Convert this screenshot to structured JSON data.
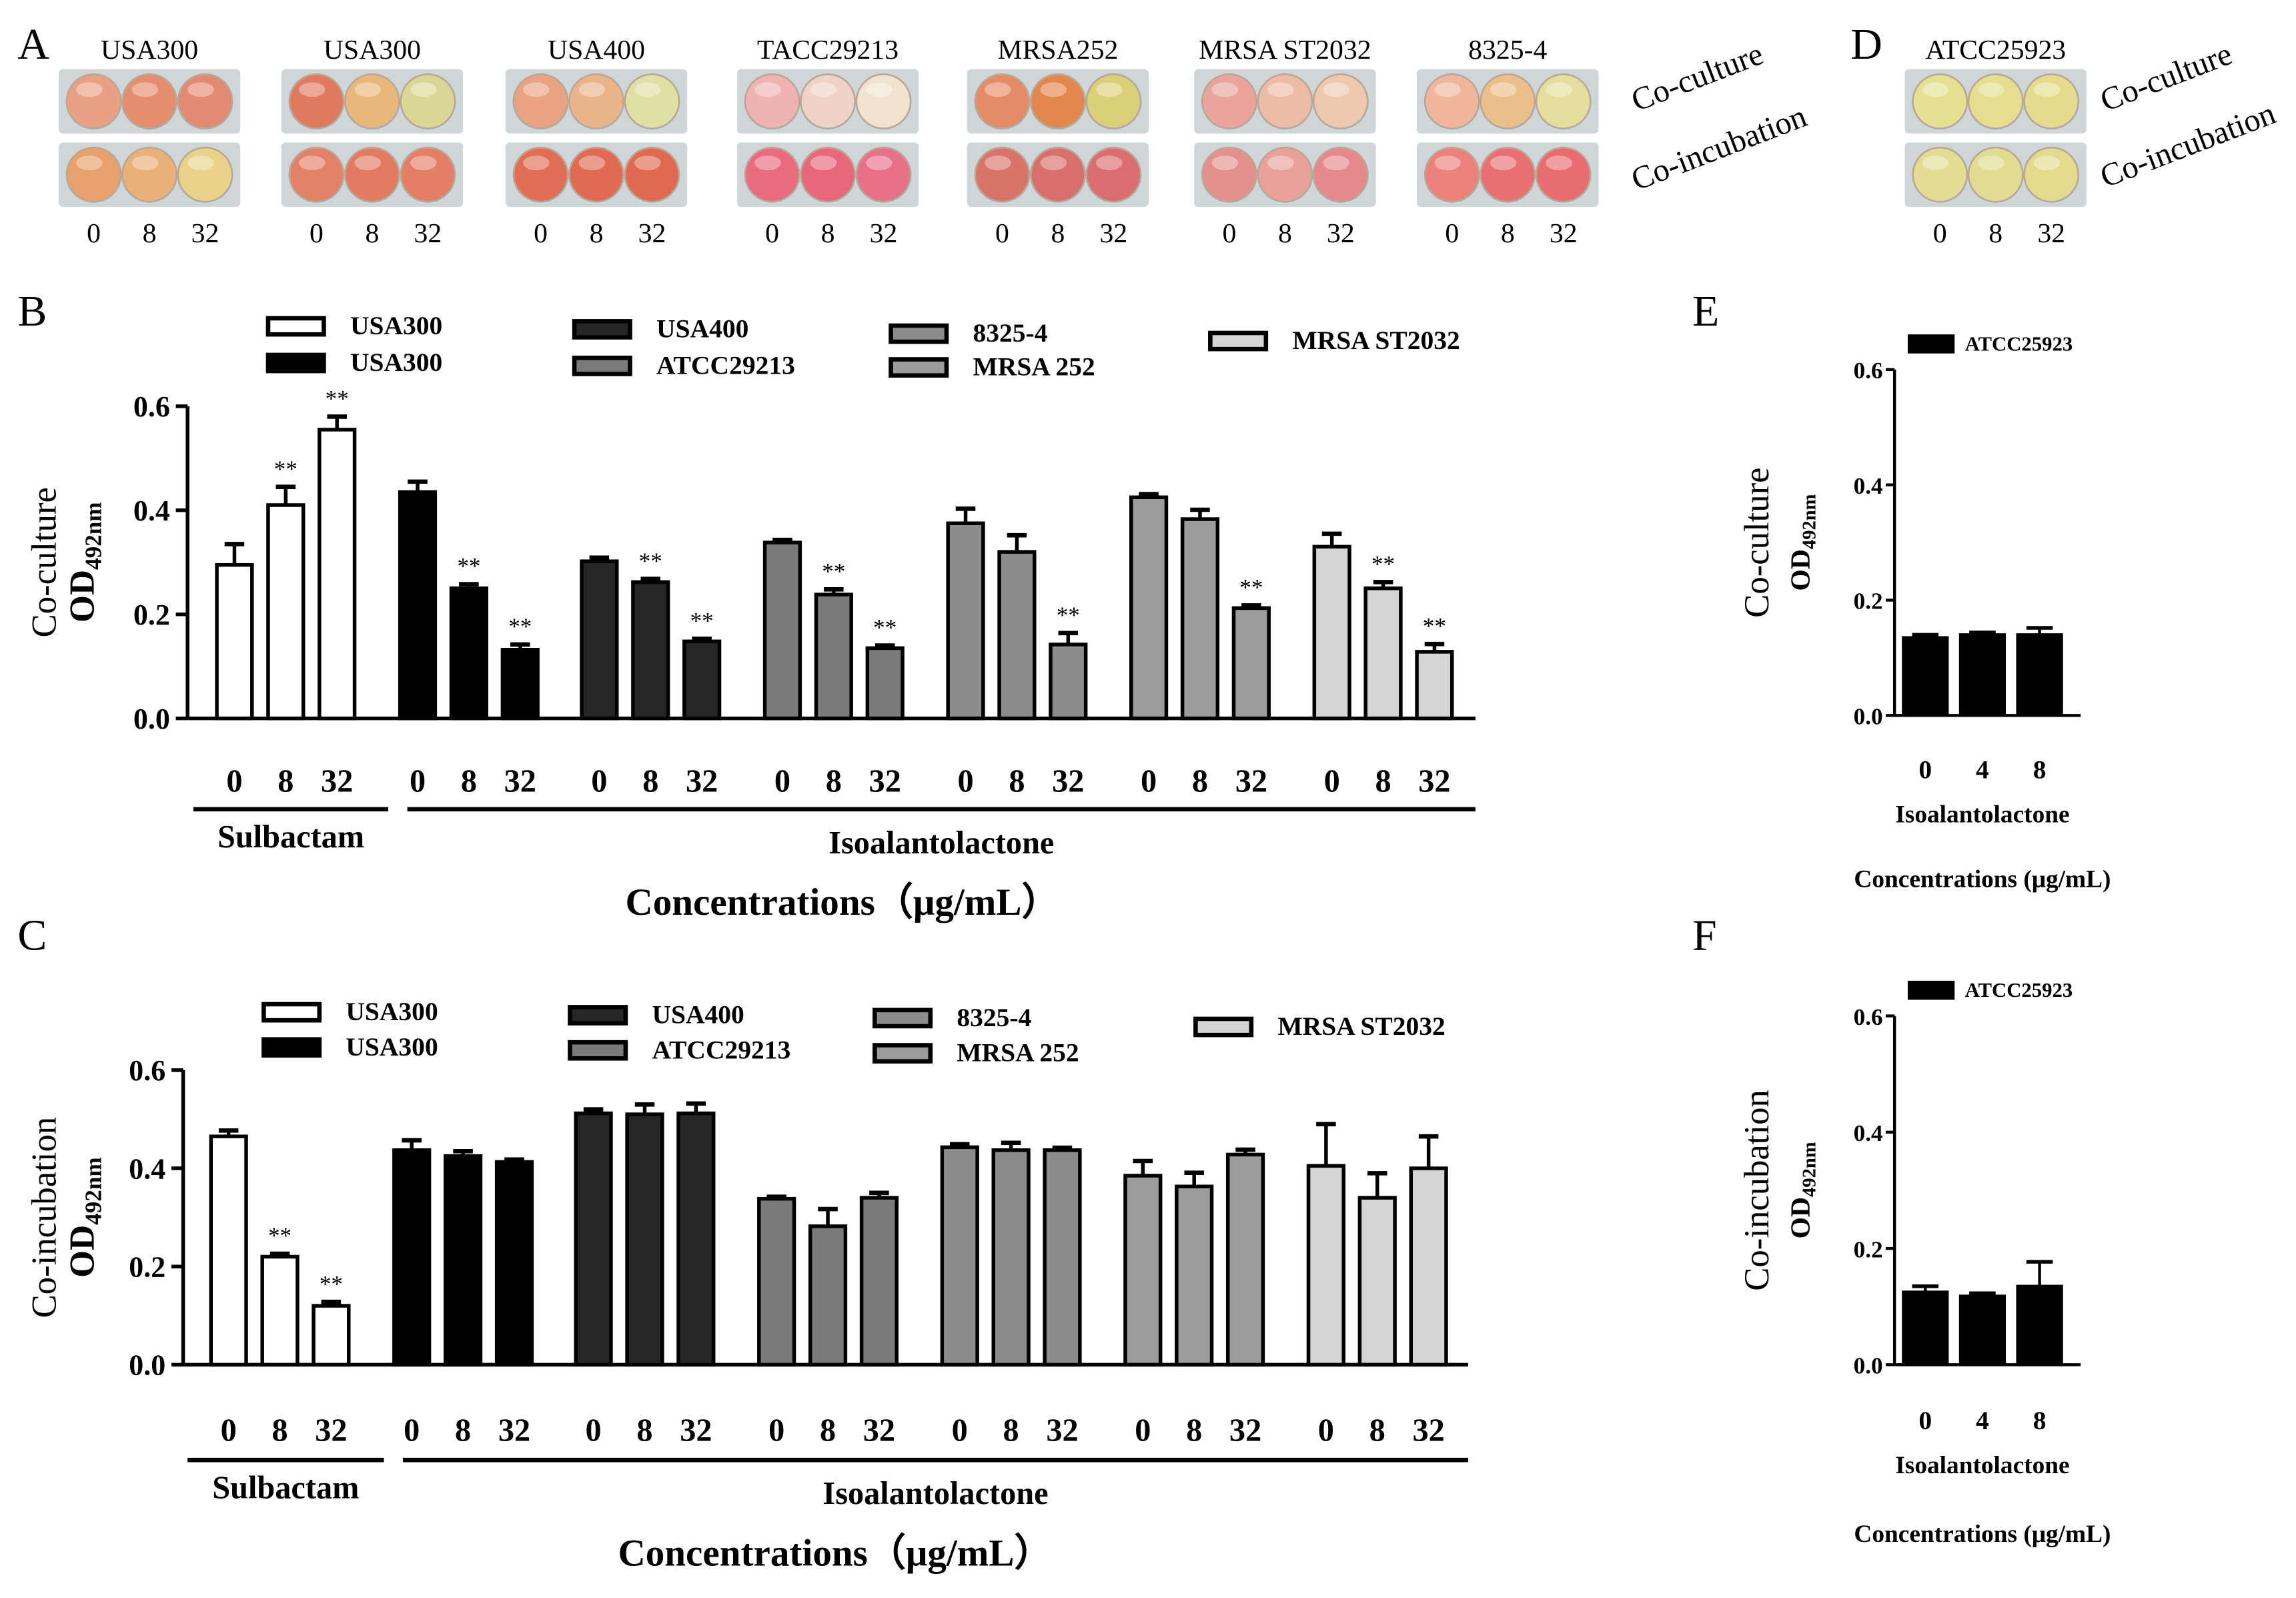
{
  "colors": {
    "white": "#ffffff",
    "black": "#000000",
    "dark_gray": "#262626",
    "gray": "#7a7a7a",
    "mid_gray": "#8c8c8c",
    "mid_gray_light": "#9b9b9b",
    "light_gray": "#d4d4d4",
    "well_frame": "#cfd6d8"
  },
  "panel_labels": {
    "a": "A",
    "b": "B",
    "c": "C",
    "d": "D",
    "e": "E",
    "f": "F"
  },
  "plates": {
    "row_labels": [
      "Co-culture",
      "Co-incubation"
    ],
    "well_ticks": [
      "0",
      "8",
      "32"
    ],
    "groups": [
      {
        "title": "USA300",
        "co_culture": [
          "#e9a184",
          "#e48e6e",
          "#e38a72"
        ],
        "co_incubation": [
          "#e8a06c",
          "#e9b077",
          "#e9d389"
        ]
      },
      {
        "title": "USA300",
        "co_culture": [
          "#e07a5e",
          "#e7b77c",
          "#dad795"
        ],
        "co_incubation": [
          "#e38068",
          "#e27b62",
          "#e27f66"
        ]
      },
      {
        "title": "USA400",
        "co_culture": [
          "#e9a383",
          "#eab489",
          "#dfe0a3"
        ],
        "co_incubation": [
          "#e26d55",
          "#e06b52",
          "#df6a50"
        ]
      },
      {
        "title": "TACC29213",
        "co_culture": [
          "#efb3b1",
          "#f0d3c8",
          "#f1e4cf"
        ],
        "co_incubation": [
          "#ea6a7e",
          "#e9677a",
          "#e8718a"
        ]
      },
      {
        "title": "MRSA252",
        "co_culture": [
          "#e58b66",
          "#e2884f",
          "#dccf79"
        ],
        "co_incubation": [
          "#d9746b",
          "#d96f6c",
          "#db6d6e"
        ]
      },
      {
        "title": "MRSA ST2032",
        "co_culture": [
          "#eaa49c",
          "#eebba6",
          "#eec9ae"
        ],
        "co_incubation": [
          "#e4918d",
          "#e8a299",
          "#e5898c"
        ]
      },
      {
        "title": "8325-4",
        "co_culture": [
          "#efb69c",
          "#ecbf8a",
          "#e5df9d"
        ],
        "co_incubation": [
          "#ec817b",
          "#e97071",
          "#e96d6f"
        ]
      }
    ],
    "panel_d": {
      "title": "ATCC25923",
      "co_culture": [
        "#e6e192",
        "#e4de8e",
        "#e3dc8c"
      ],
      "co_incubation": [
        "#e3dd93",
        "#e2dc90",
        "#e2da8d"
      ]
    }
  },
  "chart_data": [
    {
      "panel": "B",
      "type": "bar",
      "ylabel_main": "Co-culture",
      "ylabel_od": "OD",
      "ylabel_sub": "492nm",
      "ylim": [
        0,
        0.6
      ],
      "yticks": [
        "0.0",
        "0.2",
        "0.4",
        "0.6"
      ],
      "xlabel": "Concentrations（μg/mL）",
      "x_groups": [
        {
          "label": "Sulbactam"
        },
        {
          "label": "Isoalantolactone"
        }
      ],
      "categories": [
        "0",
        "8",
        "32"
      ],
      "legend": [
        "USA300",
        "USA300",
        "USA400",
        "ATCC29213",
        "8325-4",
        "MRSA 252",
        "MRSA ST2032"
      ],
      "series": [
        {
          "name": "USA300",
          "fill": "#ffffff",
          "values": [
            0.295,
            0.41,
            0.555
          ],
          "errors": [
            0.04,
            0.035,
            0.025
          ],
          "sig": [
            "",
            "**",
            "**"
          ]
        },
        {
          "name": "USA300",
          "fill": "#000000",
          "values": [
            0.435,
            0.25,
            0.132
          ],
          "errors": [
            0.02,
            0.008,
            0.01
          ],
          "sig": [
            "",
            "**",
            "**"
          ]
        },
        {
          "name": "USA400",
          "fill": "#262626",
          "values": [
            0.302,
            0.262,
            0.148
          ],
          "errors": [
            0.007,
            0.006,
            0.005
          ],
          "sig": [
            "",
            "**",
            "**"
          ]
        },
        {
          "name": "ATCC29213",
          "fill": "#7a7a7a",
          "values": [
            0.338,
            0.238,
            0.135
          ],
          "errors": [
            0.005,
            0.01,
            0.005
          ],
          "sig": [
            "",
            "**",
            "**"
          ]
        },
        {
          "name": "8325-4",
          "fill": "#8c8c8c",
          "values": [
            0.375,
            0.32,
            0.142
          ],
          "errors": [
            0.028,
            0.032,
            0.022
          ],
          "sig": [
            "",
            "",
            "**"
          ]
        },
        {
          "name": "MRSA 252",
          "fill": "#9b9b9b",
          "values": [
            0.425,
            0.383,
            0.212
          ],
          "errors": [
            0.006,
            0.018,
            0.005
          ],
          "sig": [
            "",
            "",
            "**"
          ]
        },
        {
          "name": "MRSA ST2032",
          "fill": "#d4d4d4",
          "values": [
            0.33,
            0.25,
            0.128
          ],
          "errors": [
            0.025,
            0.012,
            0.015
          ],
          "sig": [
            "",
            "**",
            "**"
          ]
        }
      ]
    },
    {
      "panel": "C",
      "type": "bar",
      "ylabel_main": "Co-incubation",
      "ylabel_od": "OD",
      "ylabel_sub": "492nm",
      "ylim": [
        0,
        0.6
      ],
      "yticks": [
        "0.0",
        "0.2",
        "0.4",
        "0.6"
      ],
      "xlabel": "Concentrations（μg/mL）",
      "x_groups": [
        {
          "label": "Sulbactam"
        },
        {
          "label": "Isoalantolactone"
        }
      ],
      "categories": [
        "0",
        "8",
        "32"
      ],
      "legend": [
        "USA300",
        "USA300",
        "USA400",
        "ATCC29213",
        "8325-4",
        "MRSA 252",
        "MRSA ST2032"
      ],
      "series": [
        {
          "name": "USA300",
          "fill": "#ffffff",
          "values": [
            0.465,
            0.22,
            0.12
          ],
          "errors": [
            0.012,
            0.006,
            0.008
          ],
          "sig": [
            "",
            "**",
            "**"
          ]
        },
        {
          "name": "USA300",
          "fill": "#000000",
          "values": [
            0.437,
            0.425,
            0.413
          ],
          "errors": [
            0.02,
            0.01,
            0.005
          ],
          "sig": [
            "",
            "",
            ""
          ]
        },
        {
          "name": "USA400",
          "fill": "#262626",
          "values": [
            0.512,
            0.51,
            0.512
          ],
          "errors": [
            0.008,
            0.02,
            0.02
          ],
          "sig": [
            "",
            "",
            ""
          ]
        },
        {
          "name": "ATCC29213",
          "fill": "#7a7a7a",
          "values": [
            0.338,
            0.282,
            0.34
          ],
          "errors": [
            0.004,
            0.035,
            0.01
          ],
          "sig": [
            "",
            "",
            ""
          ]
        },
        {
          "name": "8325-4",
          "fill": "#8c8c8c",
          "values": [
            0.443,
            0.437,
            0.437
          ],
          "errors": [
            0.006,
            0.015,
            0.005
          ],
          "sig": [
            "",
            "",
            ""
          ]
        },
        {
          "name": "MRSA 252",
          "fill": "#9b9b9b",
          "values": [
            0.385,
            0.363,
            0.428
          ],
          "errors": [
            0.03,
            0.028,
            0.01
          ],
          "sig": [
            "",
            "",
            ""
          ]
        },
        {
          "name": "MRSA ST2032",
          "fill": "#d4d4d4",
          "values": [
            0.405,
            0.34,
            0.4
          ],
          "errors": [
            0.085,
            0.05,
            0.065
          ],
          "sig": [
            "",
            "",
            ""
          ]
        }
      ]
    },
    {
      "panel": "E",
      "type": "bar",
      "ylabel_main": "Co-culture",
      "ylabel_od": "OD",
      "ylabel_sub": "492nm",
      "ylim": [
        0,
        0.6
      ],
      "yticks": [
        "0.0",
        "0.2",
        "0.4",
        "0.6"
      ],
      "xlabel": "Concentrations (μg/mL)",
      "group_label": "Isoalantolactone",
      "categories": [
        "0",
        "4",
        "8"
      ],
      "legend": [
        "ATCC25923"
      ],
      "series": [
        {
          "name": "ATCC25923",
          "fill": "#000000",
          "values": [
            0.135,
            0.14,
            0.14
          ],
          "errors": [
            0.005,
            0.004,
            0.012
          ]
        }
      ]
    },
    {
      "panel": "F",
      "type": "bar",
      "ylabel_main": "Co-incubation",
      "ylabel_od": "OD",
      "ylabel_sub": "492nm",
      "ylim": [
        0,
        0.6
      ],
      "yticks": [
        "0.0",
        "0.2",
        "0.4",
        "0.6"
      ],
      "xlabel": "Concentrations (μg/mL)",
      "group_label": "Isoalantolactone",
      "categories": [
        "0",
        "4",
        "8"
      ],
      "legend": [
        "ATCC25923"
      ],
      "series": [
        {
          "name": "ATCC25923",
          "fill": "#000000",
          "values": [
            0.125,
            0.118,
            0.135
          ],
          "errors": [
            0.01,
            0.005,
            0.042
          ]
        }
      ]
    }
  ]
}
